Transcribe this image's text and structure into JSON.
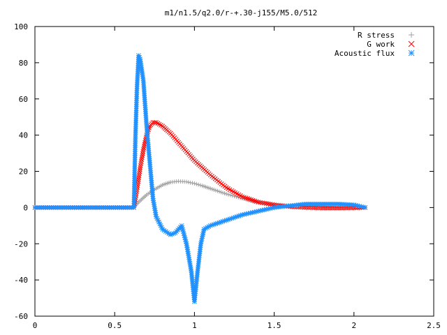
{
  "chart_data": {
    "type": "scatter",
    "title": "m1/n1.5/q2.0/r-+.30-j155/M5.0/512",
    "xlabel": "",
    "ylabel": "",
    "xlim": [
      0,
      2.5
    ],
    "ylim": [
      -60,
      100
    ],
    "x_ticks": [
      "0",
      "0.5",
      "1",
      "1.5",
      "2",
      "2.5"
    ],
    "y_ticks": [
      "-60",
      "-40",
      "-20",
      "0",
      "20",
      "40",
      "60",
      "80",
      "100"
    ],
    "grid": false,
    "legend_position": "top-right",
    "series": [
      {
        "name": "R stress",
        "marker": "plus",
        "color": "#a0a0a0",
        "points": [
          [
            0,
            0
          ],
          [
            0.3,
            0
          ],
          [
            0.62,
            0
          ],
          [
            0.65,
            3
          ],
          [
            0.7,
            7
          ],
          [
            0.75,
            10
          ],
          [
            0.8,
            12.5
          ],
          [
            0.85,
            14
          ],
          [
            0.9,
            14.5
          ],
          [
            0.95,
            14.2
          ],
          [
            1.0,
            13.3
          ],
          [
            1.05,
            12
          ],
          [
            1.1,
            10.5
          ],
          [
            1.2,
            7.5
          ],
          [
            1.3,
            5
          ],
          [
            1.4,
            3
          ],
          [
            1.5,
            1.5
          ],
          [
            1.6,
            1.2
          ],
          [
            1.7,
            1
          ],
          [
            1.8,
            0.8
          ],
          [
            1.9,
            0.5
          ],
          [
            2.0,
            0.3
          ],
          [
            2.07,
            0
          ]
        ]
      },
      {
        "name": "G work",
        "marker": "cross",
        "color": "#ff0000",
        "points": [
          [
            0,
            0
          ],
          [
            0.3,
            0
          ],
          [
            0.62,
            0
          ],
          [
            0.64,
            10
          ],
          [
            0.66,
            22
          ],
          [
            0.68,
            32
          ],
          [
            0.7,
            40
          ],
          [
            0.72,
            45
          ],
          [
            0.74,
            47
          ],
          [
            0.76,
            47
          ],
          [
            0.8,
            45
          ],
          [
            0.85,
            41
          ],
          [
            0.9,
            36
          ],
          [
            0.95,
            31
          ],
          [
            1.0,
            26
          ],
          [
            1.1,
            18
          ],
          [
            1.2,
            11
          ],
          [
            1.3,
            6
          ],
          [
            1.4,
            3
          ],
          [
            1.5,
            1.5
          ],
          [
            1.6,
            0.5
          ],
          [
            1.7,
            0
          ],
          [
            1.8,
            -0.3
          ],
          [
            1.9,
            -0.3
          ],
          [
            2.0,
            -0.2
          ],
          [
            2.07,
            0
          ]
        ]
      },
      {
        "name": "Acoustic flux",
        "marker": "asterisk",
        "color": "#1e90ff",
        "points": [
          [
            0,
            0
          ],
          [
            0.3,
            0
          ],
          [
            0.62,
            0
          ],
          [
            0.63,
            39
          ],
          [
            0.64,
            67
          ],
          [
            0.645,
            75
          ],
          [
            0.65,
            84
          ],
          [
            0.66,
            82
          ],
          [
            0.68,
            70
          ],
          [
            0.7,
            45
          ],
          [
            0.72,
            25
          ],
          [
            0.74,
            5
          ],
          [
            0.76,
            -5
          ],
          [
            0.8,
            -12
          ],
          [
            0.85,
            -15
          ],
          [
            0.88,
            -14
          ],
          [
            0.92,
            -10
          ],
          [
            0.95,
            -20
          ],
          [
            0.98,
            -35
          ],
          [
            1.0,
            -52
          ],
          [
            1.02,
            -35
          ],
          [
            1.04,
            -20
          ],
          [
            1.06,
            -12
          ],
          [
            1.1,
            -10
          ],
          [
            1.2,
            -7
          ],
          [
            1.3,
            -4
          ],
          [
            1.4,
            -2
          ],
          [
            1.5,
            0
          ],
          [
            1.6,
            1
          ],
          [
            1.7,
            2
          ],
          [
            1.8,
            2
          ],
          [
            1.9,
            2
          ],
          [
            2.0,
            1.5
          ],
          [
            2.07,
            0
          ]
        ]
      }
    ]
  }
}
